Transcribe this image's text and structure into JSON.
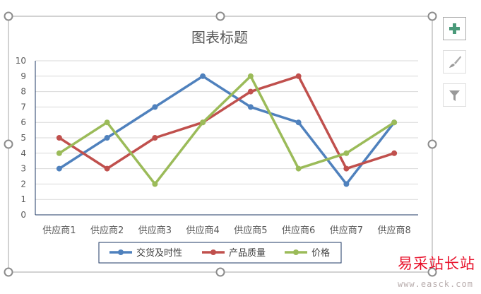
{
  "chart_data": {
    "type": "line",
    "title": "图表标题",
    "categories": [
      "供应商1",
      "供应商2",
      "供应商3",
      "供应商4",
      "供应商5",
      "供应商6",
      "供应商7",
      "供应商8"
    ],
    "ylim": [
      0,
      10
    ],
    "yticks": [
      "0",
      "1",
      "2",
      "3",
      "4",
      "5",
      "6",
      "7",
      "8",
      "9",
      "10"
    ],
    "grid": true,
    "legend": "bottom",
    "series": [
      {
        "name": "交货及时性",
        "color": "#4f81bd",
        "values": [
          3,
          5,
          7,
          9,
          7,
          6,
          2,
          6
        ]
      },
      {
        "name": "产品质量",
        "color": "#c0504d",
        "values": [
          5,
          3,
          5,
          6,
          8,
          9,
          3,
          4
        ]
      },
      {
        "name": "价格",
        "color": "#9bbb59",
        "values": [
          4,
          6,
          2,
          6,
          9,
          3,
          4,
          6
        ]
      }
    ]
  },
  "side_buttons": [
    {
      "icon": "plus-icon",
      "label": "chart-elements"
    },
    {
      "icon": "brush-icon",
      "label": "chart-styles"
    },
    {
      "icon": "filter-icon",
      "label": "chart-filters"
    }
  ],
  "watermark": {
    "text": "易采站长站",
    "url_text": "www.easck.com"
  }
}
